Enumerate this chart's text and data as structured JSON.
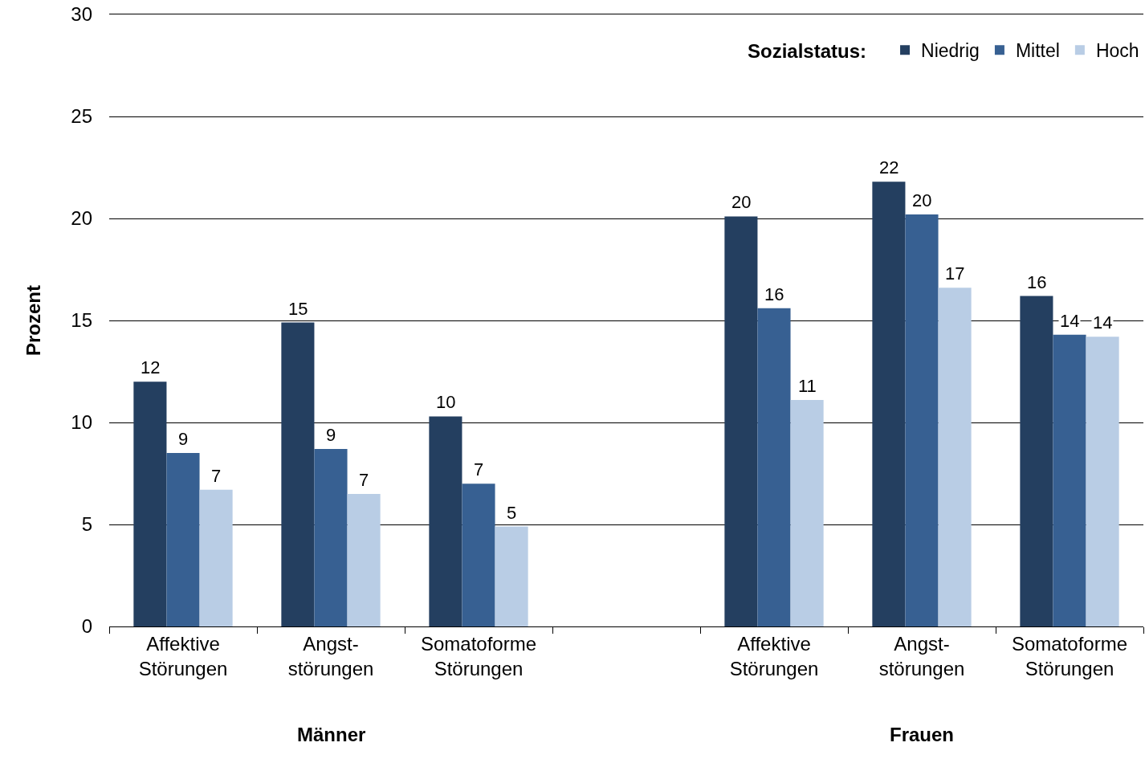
{
  "chart_data": {
    "type": "bar",
    "ylabel": "Prozent",
    "legend_title": "Sozialstatus:",
    "categories": [
      "Affektive\nStörungen",
      "Angst-\nstörungen",
      "Somatoforme\nStörungen",
      null,
      "Affektive\nStörungen",
      "Angst-\nstörungen",
      "Somatoforme\nStörungen"
    ],
    "series": [
      {
        "name": "Niedrig",
        "color": "#243f60",
        "values": [
          12.0,
          14.9,
          10.3,
          null,
          20.1,
          21.8,
          16.2
        ],
        "value_labels": [
          "12",
          "15",
          "10",
          null,
          "20",
          "22",
          "16"
        ]
      },
      {
        "name": "Mittel",
        "color": "#376092",
        "values": [
          8.5,
          8.7,
          7.0,
          null,
          15.6,
          20.2,
          14.3
        ],
        "value_labels": [
          "9",
          "9",
          "7",
          null,
          "16",
          "20",
          "14"
        ]
      },
      {
        "name": "Hoch",
        "color": "#b9cde5",
        "values": [
          6.7,
          6.5,
          4.9,
          null,
          11.1,
          16.6,
          14.2
        ],
        "value_labels": [
          "7",
          "7",
          "5",
          null,
          "11",
          "17",
          "14"
        ]
      }
    ],
    "ylim": [
      0,
      30
    ],
    "yticks": [
      0,
      5,
      10,
      15,
      20,
      25,
      30
    ],
    "grid": "y",
    "legend": "top right",
    "annotations": [
      "Männer",
      "Frauen"
    ]
  }
}
